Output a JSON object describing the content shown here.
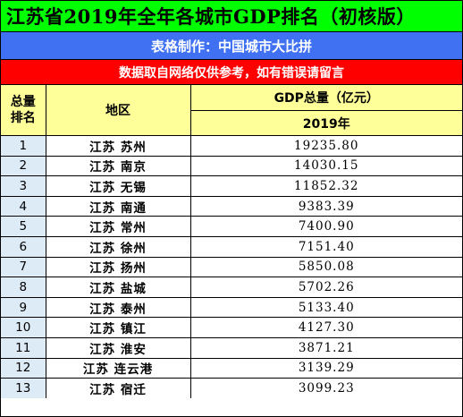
{
  "title": "江苏省2019年全年各城市GDP排名（初核版）",
  "maker": "表格制作：中国城市大比拼",
  "notice": "数据取自网络仅供参考，如有错误请留言",
  "colors": {
    "title_bg": "#00ff00",
    "maker_bg": "#3f71f2",
    "notice_bg": "#ff0000",
    "header_bg": "#ffff99",
    "rank_bg": "#ddebf7"
  },
  "table": {
    "headers": {
      "rank_line1": "总量",
      "rank_line2": "排名",
      "region": "地区",
      "gdp": "GDP总量（亿元）",
      "year": "2019年"
    },
    "rows": [
      {
        "rank": "1",
        "region": "江苏 苏州",
        "gdp": "19235.80"
      },
      {
        "rank": "2",
        "region": "江苏 南京",
        "gdp": "14030.15"
      },
      {
        "rank": "3",
        "region": "江苏 无锡",
        "gdp": "11852.32"
      },
      {
        "rank": "4",
        "region": "江苏 南通",
        "gdp": "9383.39"
      },
      {
        "rank": "5",
        "region": "江苏 常州",
        "gdp": "7400.90"
      },
      {
        "rank": "6",
        "region": "江苏 徐州",
        "gdp": "7151.40"
      },
      {
        "rank": "7",
        "region": "江苏 扬州",
        "gdp": "5850.08"
      },
      {
        "rank": "8",
        "region": "江苏 盐城",
        "gdp": "5702.26"
      },
      {
        "rank": "9",
        "region": "江苏 泰州",
        "gdp": "5133.40"
      },
      {
        "rank": "10",
        "region": "江苏 镇江",
        "gdp": "4127.30"
      },
      {
        "rank": "11",
        "region": "江苏 淮安",
        "gdp": "3871.21"
      },
      {
        "rank": "12",
        "region": "江苏 连云港",
        "gdp": "3139.29"
      },
      {
        "rank": "13",
        "region": "江苏 宿迁",
        "gdp": "3099.23"
      }
    ]
  }
}
